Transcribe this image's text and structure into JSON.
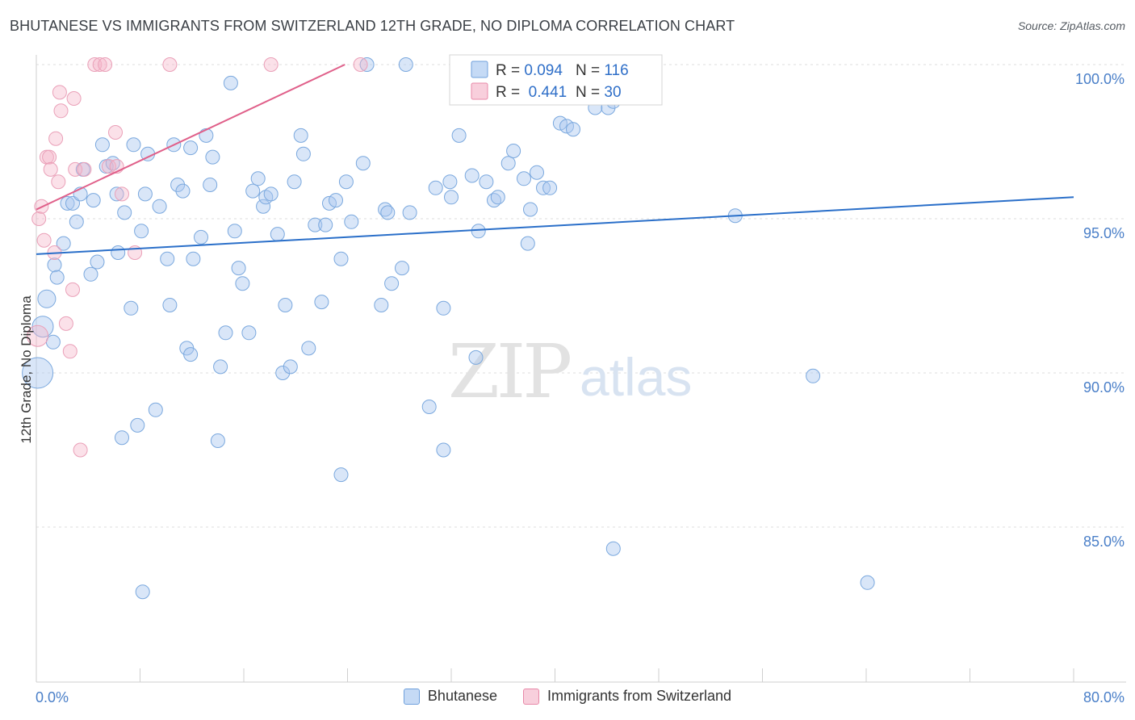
{
  "header": {
    "title": "BHUTANESE VS IMMIGRANTS FROM SWITZERLAND 12TH GRADE, NO DIPLOMA CORRELATION CHART",
    "source": "Source: ZipAtlas.com"
  },
  "watermark": {
    "zip": "ZIP",
    "atlas": "atlas"
  },
  "stats_legend": {
    "rows": [
      {
        "r_label": "R = ",
        "r_value": "0.094",
        "n_label": "N = ",
        "n_value": "116",
        "color": "#6fa0dc"
      },
      {
        "r_label": "R = ",
        "r_value": " 0.441",
        "n_label": "N = ",
        "n_value": "30",
        "color": "#e889a8"
      }
    ]
  },
  "chart_data": {
    "type": "scatter",
    "title": "BHUTANESE VS IMMIGRANTS FROM SWITZERLAND 12TH GRADE, NO DIPLOMA CORRELATION CHART",
    "xlabel": "",
    "ylabel": "12th Grade, No Diploma",
    "xlim": [
      0,
      80
    ],
    "ylim": [
      80.5,
      100.8
    ],
    "x_tick_labels": [
      "0.0%",
      "80.0%"
    ],
    "y_ticks": [
      100,
      95,
      90,
      85
    ],
    "y_tick_labels": [
      "100.0%",
      "95.0%",
      "90.0%",
      "85.0%"
    ],
    "grid": true,
    "colors": {
      "bhutanese": "#6fa0dc",
      "swiss": "#e889a8",
      "blue_line": "#2a6fc9",
      "pink_line": "#e0608a",
      "tick_text": "#4a7fc8"
    },
    "series": [
      {
        "name": "Bhutanese",
        "trend": {
          "x": [
            0,
            80
          ],
          "y": [
            93.85,
            95.7
          ]
        },
        "points": [
          [
            0.1,
            90.0
          ],
          [
            0.5,
            91.5
          ],
          [
            0.8,
            92.4
          ],
          [
            1.3,
            91.0
          ],
          [
            1.4,
            93.5
          ],
          [
            1.6,
            93.1
          ],
          [
            2.1,
            94.2
          ],
          [
            2.4,
            95.5
          ],
          [
            2.8,
            95.5
          ],
          [
            3.1,
            94.9
          ],
          [
            3.4,
            95.8
          ],
          [
            3.6,
            96.6
          ],
          [
            4.2,
            93.2
          ],
          [
            4.4,
            95.6
          ],
          [
            4.7,
            93.6
          ],
          [
            5.1,
            97.4
          ],
          [
            5.4,
            96.7
          ],
          [
            5.9,
            96.8
          ],
          [
            6.2,
            95.8
          ],
          [
            6.3,
            93.9
          ],
          [
            6.8,
            95.2
          ],
          [
            7.3,
            92.1
          ],
          [
            7.5,
            97.4
          ],
          [
            8.1,
            94.6
          ],
          [
            8.4,
            95.8
          ],
          [
            8.6,
            97.1
          ],
          [
            9.5,
            95.4
          ],
          [
            10.1,
            93.7
          ],
          [
            10.3,
            92.2
          ],
          [
            10.6,
            97.4
          ],
          [
            10.9,
            96.1
          ],
          [
            11.3,
            95.9
          ],
          [
            11.6,
            90.8
          ],
          [
            11.9,
            97.3
          ],
          [
            12.1,
            93.7
          ],
          [
            12.7,
            94.4
          ],
          [
            13.1,
            97.7
          ],
          [
            13.4,
            96.1
          ],
          [
            13.6,
            97.0
          ],
          [
            14.2,
            90.2
          ],
          [
            14.6,
            91.3
          ],
          [
            15.0,
            99.4
          ],
          [
            15.3,
            94.6
          ],
          [
            15.6,
            93.4
          ],
          [
            15.9,
            92.9
          ],
          [
            16.4,
            91.3
          ],
          [
            16.7,
            95.9
          ],
          [
            17.1,
            96.3
          ],
          [
            17.5,
            95.4
          ],
          [
            17.7,
            95.7
          ],
          [
            18.1,
            95.8
          ],
          [
            18.6,
            94.5
          ],
          [
            19.0,
            90.0
          ],
          [
            19.2,
            92.2
          ],
          [
            19.6,
            90.2
          ],
          [
            19.9,
            96.2
          ],
          [
            20.4,
            97.7
          ],
          [
            20.6,
            97.1
          ],
          [
            21.0,
            90.8
          ],
          [
            21.5,
            94.8
          ],
          [
            22.0,
            92.3
          ],
          [
            22.3,
            94.8
          ],
          [
            22.6,
            95.5
          ],
          [
            23.1,
            95.6
          ],
          [
            23.5,
            93.7
          ],
          [
            23.9,
            96.2
          ],
          [
            24.3,
            94.9
          ],
          [
            25.2,
            96.8
          ],
          [
            26.6,
            92.2
          ],
          [
            26.9,
            95.3
          ],
          [
            27.1,
            95.2
          ],
          [
            27.4,
            92.9
          ],
          [
            28.2,
            93.4
          ],
          [
            28.8,
            95.2
          ],
          [
            30.3,
            88.9
          ],
          [
            30.8,
            96.0
          ],
          [
            31.4,
            92.1
          ],
          [
            31.9,
            96.2
          ],
          [
            32.0,
            95.7
          ],
          [
            32.6,
            97.7
          ],
          [
            33.6,
            96.4
          ],
          [
            33.9,
            90.5
          ],
          [
            34.1,
            94.6
          ],
          [
            34.7,
            96.2
          ],
          [
            35.3,
            95.6
          ],
          [
            35.6,
            95.7
          ],
          [
            36.4,
            96.8
          ],
          [
            36.8,
            97.2
          ],
          [
            37.6,
            96.3
          ],
          [
            37.9,
            94.2
          ],
          [
            38.1,
            95.3
          ],
          [
            38.6,
            96.5
          ],
          [
            39.1,
            96.0
          ],
          [
            39.6,
            96.0
          ],
          [
            40.4,
            98.1
          ],
          [
            40.9,
            98.0
          ],
          [
            41.4,
            97.9
          ],
          [
            43.1,
            98.6
          ],
          [
            44.1,
            98.6
          ],
          [
            44.5,
            98.8
          ],
          [
            45.1,
            100.0
          ],
          [
            8.2,
            82.9
          ],
          [
            9.2,
            88.8
          ],
          [
            11.9,
            90.6
          ],
          [
            14.0,
            87.8
          ],
          [
            23.5,
            86.7
          ],
          [
            31.4,
            87.5
          ],
          [
            44.5,
            84.3
          ],
          [
            59.9,
            89.9
          ],
          [
            64.1,
            83.2
          ],
          [
            53.9,
            95.1
          ],
          [
            25.5,
            100.0
          ],
          [
            28.5,
            100.0
          ],
          [
            42.5,
            100.0
          ],
          [
            6.6,
            87.9
          ],
          [
            7.8,
            88.3
          ]
        ]
      },
      {
        "name": "Immigrants from Switzerland",
        "trend": {
          "x": [
            0,
            23.8
          ],
          "y": [
            95.3,
            100.0
          ]
        },
        "points": [
          [
            0.1,
            91.2
          ],
          [
            0.2,
            95.0
          ],
          [
            0.4,
            95.4
          ],
          [
            0.6,
            94.3
          ],
          [
            0.8,
            97.0
          ],
          [
            1.0,
            97.0
          ],
          [
            1.1,
            96.6
          ],
          [
            1.4,
            93.9
          ],
          [
            1.5,
            97.6
          ],
          [
            1.7,
            96.2
          ],
          [
            1.8,
            99.1
          ],
          [
            1.9,
            98.5
          ],
          [
            2.3,
            91.6
          ],
          [
            2.6,
            90.7
          ],
          [
            2.8,
            92.7
          ],
          [
            2.9,
            98.9
          ],
          [
            3.0,
            96.6
          ],
          [
            3.4,
            87.5
          ],
          [
            3.7,
            96.6
          ],
          [
            4.5,
            100.0
          ],
          [
            4.9,
            100.0
          ],
          [
            5.3,
            100.0
          ],
          [
            5.6,
            96.7
          ],
          [
            6.1,
            97.8
          ],
          [
            6.2,
            96.7
          ],
          [
            6.6,
            95.8
          ],
          [
            7.6,
            93.9
          ],
          [
            10.3,
            100.0
          ],
          [
            18.1,
            100.0
          ],
          [
            25.0,
            100.0
          ]
        ]
      }
    ],
    "legend": [
      "Bhutanese",
      "Immigrants from Switzerland"
    ],
    "legend_placement": "bottom"
  }
}
